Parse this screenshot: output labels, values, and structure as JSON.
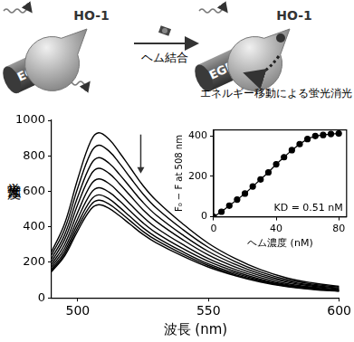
{
  "diagram": {
    "proteins": [
      "EGFP",
      "HO-1"
    ],
    "step": "ヘム結合",
    "caption": "エネルギー移動による蛍光消光"
  },
  "chart_data": [
    {
      "type": "line",
      "x_label": "波長 (nm)",
      "y_label": "蛍光強度",
      "marker": "none",
      "grid": false,
      "x": [
        490,
        495,
        500,
        505,
        508,
        512,
        516,
        520,
        525,
        530,
        540,
        550,
        560,
        570,
        580,
        590,
        600
      ],
      "xlim": [
        490,
        600
      ],
      "xticks": [
        500,
        550,
        600
      ],
      "ylim": [
        0,
        1000
      ],
      "yticks": [
        0,
        200,
        400,
        600,
        800,
        1000
      ],
      "series": [
        {
          "color": "#000000",
          "values": [
            260,
            419,
            670,
            884,
            930,
            893,
            818,
            735,
            632,
            549,
            419,
            307,
            223,
            158,
            112,
            84,
            65
          ]
        },
        {
          "color": "#000000",
          "values": [
            241,
            387,
            619,
            817,
            860,
            826,
            757,
            679,
            585,
            507,
            387,
            284,
            206,
            146,
            103,
            77,
            60
          ]
        },
        {
          "color": "#000000",
          "values": [
            221,
            356,
            569,
            751,
            790,
            758,
            695,
            624,
            537,
            466,
            356,
            261,
            190,
            134,
            95,
            71,
            55
          ]
        },
        {
          "color": "#000000",
          "values": [
            204,
            329,
            526,
            694,
            730,
            701,
            642,
            577,
            496,
            431,
            329,
            241,
            175,
            124,
            88,
            66,
            51
          ]
        },
        {
          "color": "#000000",
          "values": [
            188,
            302,
            482,
            637,
            670,
            643,
            590,
            529,
            456,
            395,
            302,
            221,
            161,
            114,
            80,
            60,
            47
          ]
        },
        {
          "color": "#000000",
          "values": [
            174,
            279,
            446,
            589,
            620,
            595,
            546,
            490,
            422,
            366,
            279,
            205,
            149,
            105,
            74,
            56,
            43
          ]
        },
        {
          "color": "#000000",
          "values": [
            162,
            261,
            418,
            551,
            580,
            557,
            510,
            458,
            394,
            342,
            261,
            191,
            139,
            99,
            70,
            52,
            41
          ]
        },
        {
          "color": "#000000",
          "values": [
            154,
            248,
            396,
            523,
            550,
            528,
            484,
            435,
            374,
            325,
            248,
            182,
            132,
            94,
            66,
            50,
            39
          ]
        },
        {
          "color": "#000000",
          "values": [
            147,
            236,
            378,
            499,
            525,
            504,
            462,
            415,
            357,
            310,
            236,
            173,
            126,
            89,
            63,
            47,
            37
          ]
        }
      ]
    },
    {
      "type": "line",
      "x_label": "ヘム濃度 (nM)",
      "y_label": "F₀ − F at 508 nm",
      "annotation": "KD = 0.51 nM",
      "marker": "circle",
      "color": "#000000",
      "grid": false,
      "x": [
        0,
        5,
        10,
        15,
        20,
        25,
        30,
        35,
        40,
        45,
        50,
        55,
        60,
        65,
        70,
        75,
        80
      ],
      "values": [
        0,
        25,
        55,
        85,
        115,
        150,
        185,
        220,
        260,
        295,
        330,
        360,
        385,
        400,
        405,
        410,
        412
      ],
      "xlim": [
        0,
        85
      ],
      "xticks": [
        0,
        40,
        80
      ],
      "ylim": [
        0,
        430
      ],
      "yticks": [
        0,
        200,
        400
      ]
    }
  ]
}
